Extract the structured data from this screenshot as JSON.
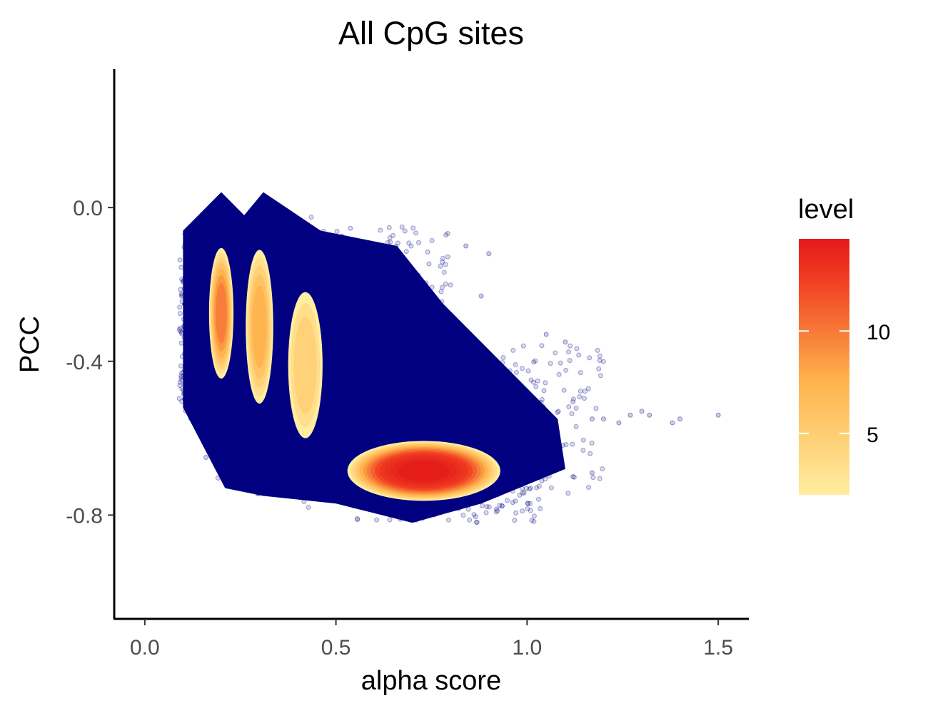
{
  "chart_data": {
    "type": "scatter",
    "title": "All CpG sites",
    "xlabel": "alpha score",
    "ylabel": "PCC",
    "xlim": [
      -0.08,
      1.58
    ],
    "ylim": [
      -1.07,
      0.36
    ],
    "x_ticks": [
      0.0,
      0.5,
      1.0,
      1.5
    ],
    "x_tick_labels": [
      "0.0",
      "0.5",
      "1.0",
      "1.5"
    ],
    "y_ticks": [
      0.0,
      -0.4,
      -0.8
    ],
    "y_tick_labels": [
      "0.0",
      "-0.4",
      "-0.8"
    ],
    "grid": false,
    "point_color": "#000080",
    "point_opacity": 0.15,
    "scatter_clusters": [
      {
        "x_range": [
          0.09,
          0.11
        ],
        "y_range": [
          -0.52,
          -0.06
        ],
        "n": 60
      },
      {
        "x_range": [
          0.1,
          0.2
        ],
        "y_range": [
          -0.55,
          -0.08
        ],
        "n": 120
      },
      {
        "x_range": [
          0.19,
          0.21
        ],
        "y_range": [
          -0.74,
          0.04
        ],
        "n": 90
      },
      {
        "x_range": [
          0.29,
          0.31
        ],
        "y_range": [
          -0.75,
          0.04
        ],
        "n": 90
      },
      {
        "x_range": [
          0.2,
          0.45
        ],
        "y_range": [
          -0.72,
          -0.02
        ],
        "n": 260
      },
      {
        "x_range": [
          0.4,
          0.8
        ],
        "y_range": [
          -0.78,
          -0.05
        ],
        "n": 420
      },
      {
        "x_range": [
          0.55,
          1.05
        ],
        "y_range": [
          -0.82,
          -0.4
        ],
        "n": 420
      },
      {
        "x_range": [
          0.8,
          1.2
        ],
        "y_range": [
          -0.75,
          -0.35
        ],
        "n": 140
      }
    ],
    "outlier_points": [
      {
        "x": 1.17,
        "y": -0.55
      },
      {
        "x": 1.2,
        "y": -0.55
      },
      {
        "x": 1.24,
        "y": -0.56
      },
      {
        "x": 1.27,
        "y": -0.54
      },
      {
        "x": 1.3,
        "y": -0.53
      },
      {
        "x": 1.32,
        "y": -0.54
      },
      {
        "x": 1.38,
        "y": -0.56
      },
      {
        "x": 1.4,
        "y": -0.55
      },
      {
        "x": 1.5,
        "y": -0.54
      },
      {
        "x": 1.05,
        "y": -0.33
      },
      {
        "x": 1.1,
        "y": -0.35
      },
      {
        "x": 0.9,
        "y": -0.12
      },
      {
        "x": 0.84,
        "y": -0.1
      },
      {
        "x": 0.88,
        "y": -0.23
      },
      {
        "x": 1.12,
        "y": -0.7
      },
      {
        "x": 1.17,
        "y": -0.69
      },
      {
        "x": 0.16,
        "y": -0.65
      },
      {
        "x": 0.26,
        "y": -0.71
      }
    ],
    "density_regions": [
      {
        "cx": 0.2,
        "cy": -0.275,
        "rx": 0.032,
        "ry": 0.17,
        "peak_level": 8
      },
      {
        "cx": 0.3,
        "cy": -0.31,
        "rx": 0.036,
        "ry": 0.2,
        "peak_level": 6
      },
      {
        "cx": 0.42,
        "cy": -0.41,
        "rx": 0.045,
        "ry": 0.19,
        "peak_level": 4
      },
      {
        "cx": 0.73,
        "cy": -0.685,
        "rx": 0.2,
        "ry": 0.078,
        "peak_level": 14
      }
    ],
    "legend": {
      "title": "level",
      "type": "colorbar",
      "position": "right",
      "range": [
        2,
        14.5
      ],
      "ticks": [
        5,
        10
      ],
      "tick_labels": [
        "5",
        "10"
      ],
      "colors": [
        "#FFEDA0",
        "#FEB24C",
        "#F03B20",
        "#E31A1C"
      ]
    }
  }
}
